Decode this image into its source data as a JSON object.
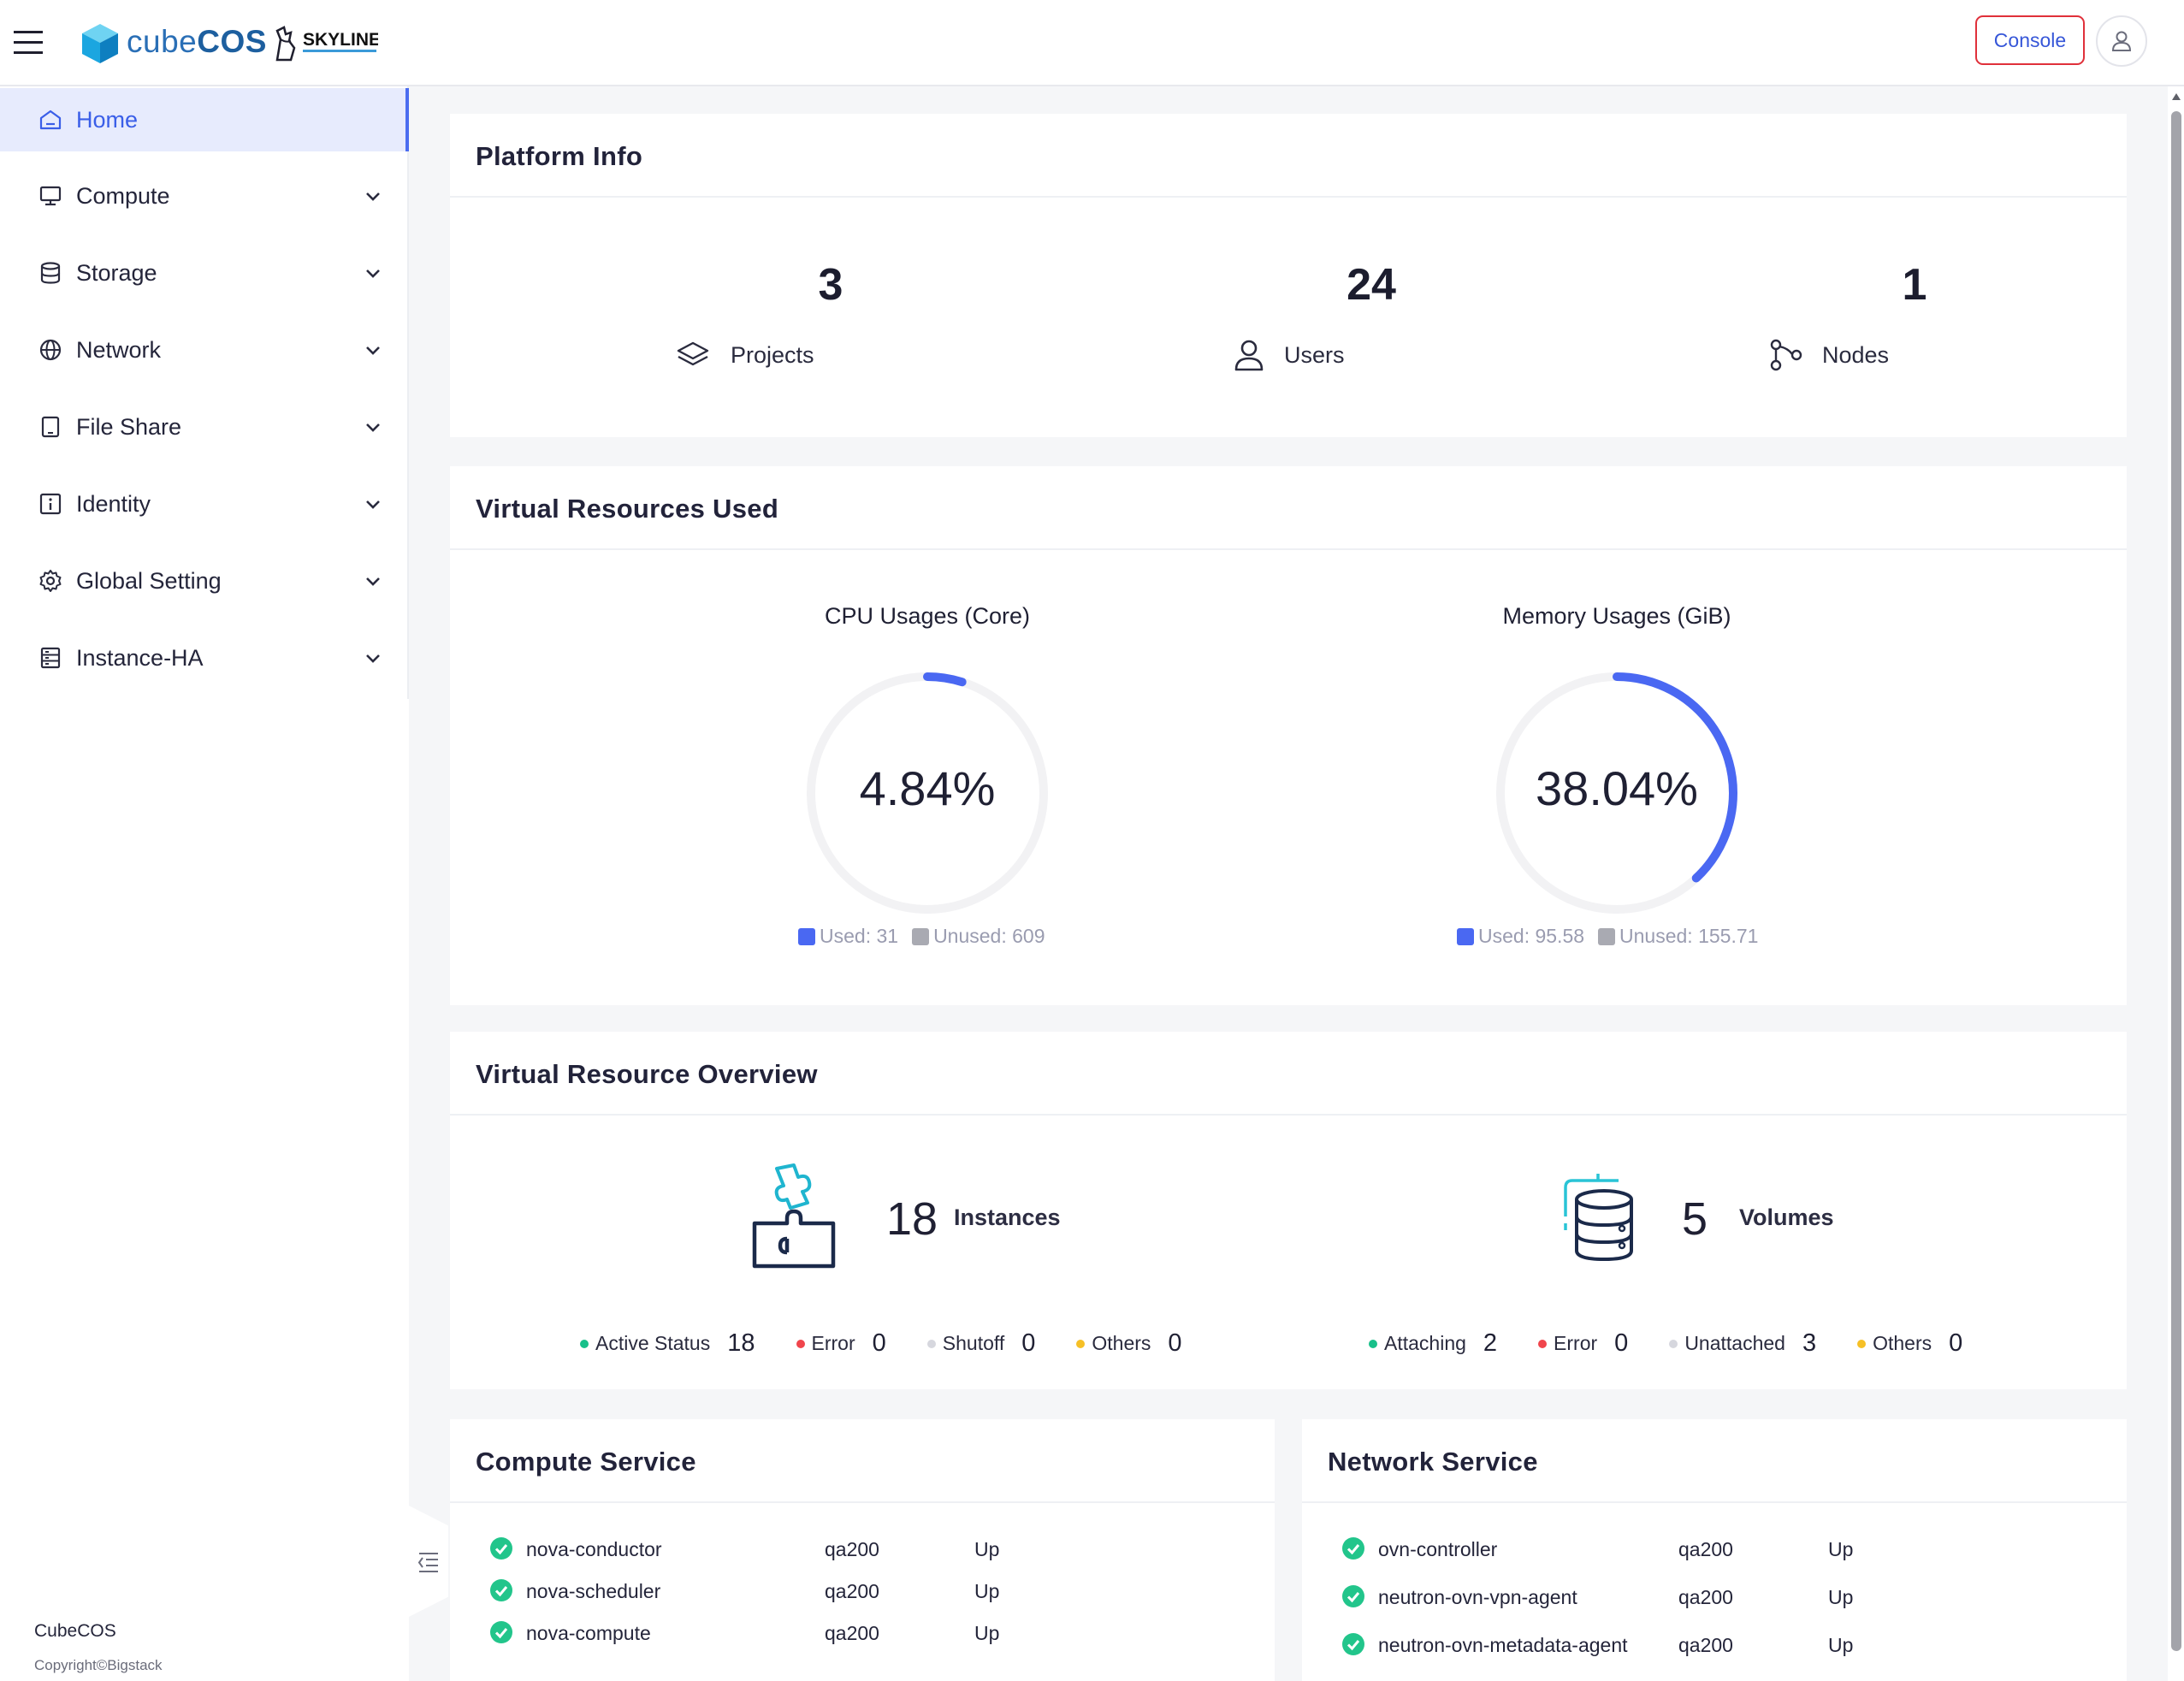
{
  "header": {
    "brand_light": "cube",
    "brand_bold": "COS",
    "skyline_label": "SKYLINE",
    "console_label": "Console"
  },
  "sidebar": {
    "items": [
      {
        "label": "Home",
        "icon": "home-icon",
        "active": true
      },
      {
        "label": "Compute",
        "icon": "monitor-icon"
      },
      {
        "label": "Storage",
        "icon": "database-icon"
      },
      {
        "label": "Network",
        "icon": "globe-icon"
      },
      {
        "label": "File Share",
        "icon": "tablet-icon"
      },
      {
        "label": "Identity",
        "icon": "info-icon"
      },
      {
        "label": "Global Setting",
        "icon": "gear-icon"
      },
      {
        "label": "Instance-HA",
        "icon": "server-icon"
      }
    ],
    "footer_title": "CubeCOS",
    "footer_copyright": "Copyright©Bigstack"
  },
  "platform_info": {
    "title": "Platform Info",
    "stats": [
      {
        "value": "3",
        "label": "Projects",
        "icon": "layers-icon"
      },
      {
        "value": "24",
        "label": "Users",
        "icon": "user-icon"
      },
      {
        "value": "1",
        "label": "Nodes",
        "icon": "nodes-icon"
      }
    ]
  },
  "virtual_resources_used": {
    "title": "Virtual Resources Used",
    "gauges": [
      {
        "title": "CPU Usages (Core)",
        "percent_label": "4.84%",
        "fraction": 0.0484,
        "used_label": "Used: 31",
        "unused_label": "Unused: 609"
      },
      {
        "title": "Memory Usages (GiB)",
        "percent_label": "38.04%",
        "fraction": 0.3804,
        "used_label": "Used: 95.58",
        "unused_label": "Unused: 155.71"
      }
    ],
    "colors": {
      "used": "#4a68f2",
      "unused": "#a9aab2",
      "track": "#f2f2f4"
    }
  },
  "virtual_resource_overview": {
    "title": "Virtual Resource Overview",
    "instances": {
      "count": "18",
      "label": "Instances",
      "statuses": [
        {
          "label": "Active Status",
          "count": "18",
          "color": "#18c08a"
        },
        {
          "label": "Error",
          "count": "0",
          "color": "#f0454c"
        },
        {
          "label": "Shutoff",
          "count": "0",
          "color": "#d6d7de"
        },
        {
          "label": "Others",
          "count": "0",
          "color": "#f6c026"
        }
      ]
    },
    "volumes": {
      "count": "5",
      "label": "Volumes",
      "statuses": [
        {
          "label": "Attaching",
          "count": "2",
          "color": "#18c08a"
        },
        {
          "label": "Error",
          "count": "0",
          "color": "#f0454c"
        },
        {
          "label": "Unattached",
          "count": "3",
          "color": "#d6d7de"
        },
        {
          "label": "Others",
          "count": "0",
          "color": "#f6c026"
        }
      ]
    }
  },
  "compute_service": {
    "title": "Compute Service",
    "rows": [
      {
        "name": "nova-conductor",
        "host": "qa200",
        "state": "Up"
      },
      {
        "name": "nova-scheduler",
        "host": "qa200",
        "state": "Up"
      },
      {
        "name": "nova-compute",
        "host": "qa200",
        "state": "Up"
      }
    ]
  },
  "network_service": {
    "title": "Network Service",
    "rows": [
      {
        "name": "ovn-controller",
        "host": "qa200",
        "state": "Up"
      },
      {
        "name": "neutron-ovn-vpn-agent",
        "host": "qa200",
        "state": "Up"
      },
      {
        "name": "neutron-ovn-metadata-agent",
        "host": "qa200",
        "state": "Up"
      }
    ]
  }
}
